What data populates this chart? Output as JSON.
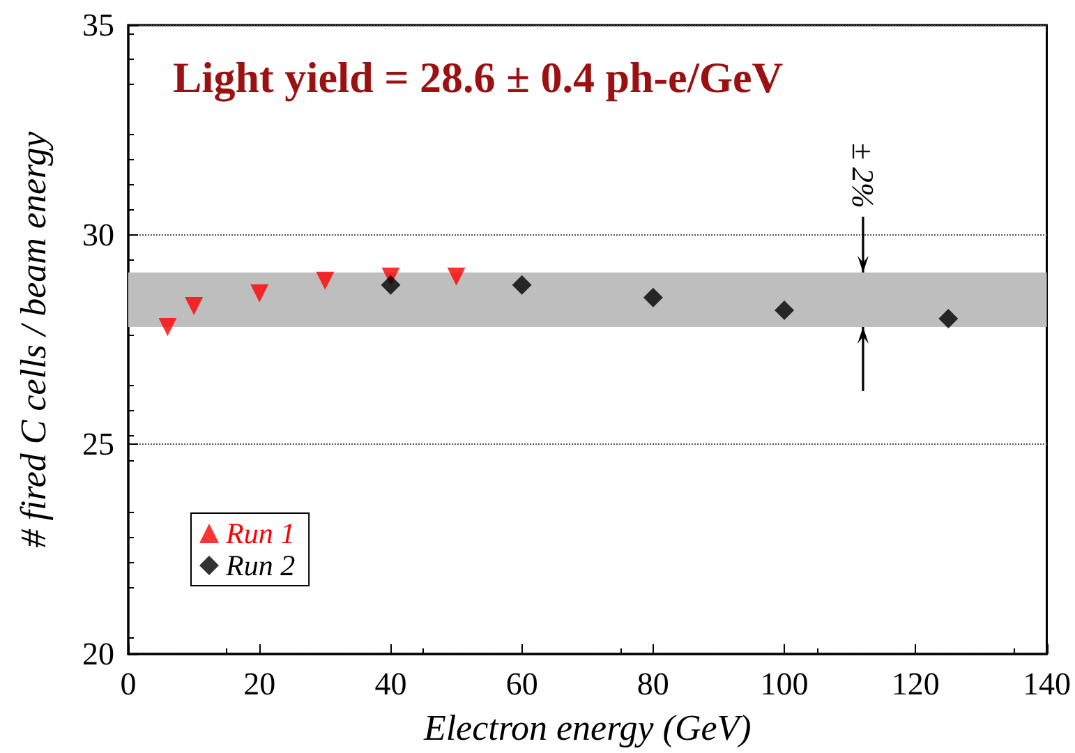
{
  "chart_data": {
    "type": "scatter",
    "annotations": [
      "Light yield = 28.6 ± 0.4 ph-e/GeV",
      {
        "text": "± 2%",
        "x": 112,
        "y": 29.1
      }
    ],
    "xlabel": "Electron energy (GeV)",
    "ylabel": "# fired C cells / beam energy",
    "series": [
      {
        "name": "Run 1",
        "color": "#ff0000",
        "marker": "triangle",
        "x": [
          6,
          10,
          20,
          30,
          40,
          50
        ],
        "values": [
          27.8,
          28.3,
          28.6,
          28.9,
          29.0,
          29.0
        ]
      },
      {
        "name": "Run 2",
        "color": "#000000",
        "marker": "diamond",
        "x": [
          40,
          60,
          80,
          100,
          125
        ],
        "values": [
          28.8,
          28.8,
          28.5,
          28.2,
          28.0
        ]
      }
    ],
    "bands": [
      {
        "axis": "y",
        "from": 27.8,
        "to": 29.1,
        "color": "#bebebe"
      }
    ],
    "xlim": [
      0,
      140
    ],
    "xticks": [
      0,
      20,
      40,
      60,
      80,
      100,
      120,
      140
    ],
    "ylim": [
      20,
      35
    ],
    "yticks": [
      20,
      25,
      30,
      35
    ],
    "grid": "y",
    "legend": "bottom left"
  }
}
